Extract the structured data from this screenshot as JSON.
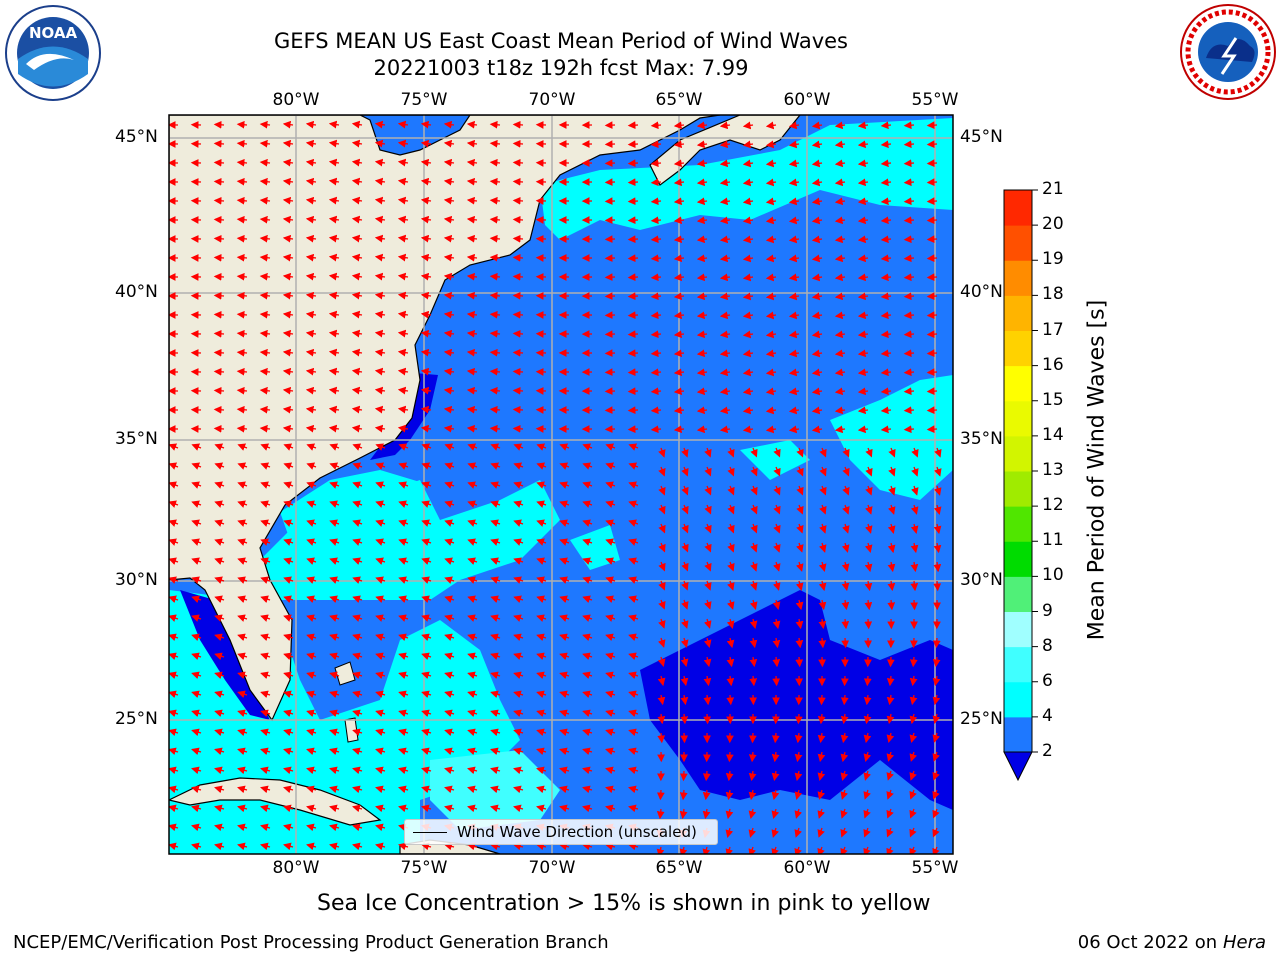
{
  "title": {
    "line1": "GEFS MEAN US East Coast Mean Period of Wind Waves",
    "line2": "20221003 t18z 192h fcst   Max: 7.99"
  },
  "map": {
    "lon_labels": [
      "80°W",
      "75°W",
      "70°W",
      "65°W",
      "60°W",
      "55°W"
    ],
    "lat_labels": [
      "45°N",
      "40°N",
      "35°N",
      "30°N",
      "25°N"
    ],
    "extent": {
      "lon": [
        -85,
        -54.5
      ],
      "lat": [
        20.5,
        46
      ]
    },
    "land_color": "#efecdc",
    "gridline_color": "#b0b0b0",
    "arrow_color": "#ff0000"
  },
  "legend": {
    "label": "Wind Wave Direction (unscaled)"
  },
  "colorbar": {
    "label": "Mean Period of Wind Waves [s]",
    "ticks": [
      "2",
      "4",
      "6",
      "8",
      "9",
      "10",
      "11",
      "12",
      "13",
      "14",
      "15",
      "16",
      "17",
      "18",
      "19",
      "20",
      "21"
    ],
    "colors": [
      "#1e78ff",
      "#00ffff",
      "#40ffff",
      "#a0ffff",
      "#50f078",
      "#00dc00",
      "#50e600",
      "#a0eb00",
      "#d2f500",
      "#eafa00",
      "#ffff00",
      "#ffd200",
      "#ffb400",
      "#ff8c00",
      "#ff5000",
      "#ff2800",
      "#ff0000"
    ],
    "extend_color": "#0000e6"
  },
  "caption": "Sea Ice Concentration > 15% is shown in pink to yellow",
  "footer": {
    "left": "NCEP/EMC/Verification Post Processing Product Generation Branch",
    "right_prefix": "06 Oct 2022 on ",
    "right_host": "Hera"
  },
  "logos": {
    "noaa": "NOAA",
    "nws": "NATIONAL WEATHER SERVICE"
  }
}
